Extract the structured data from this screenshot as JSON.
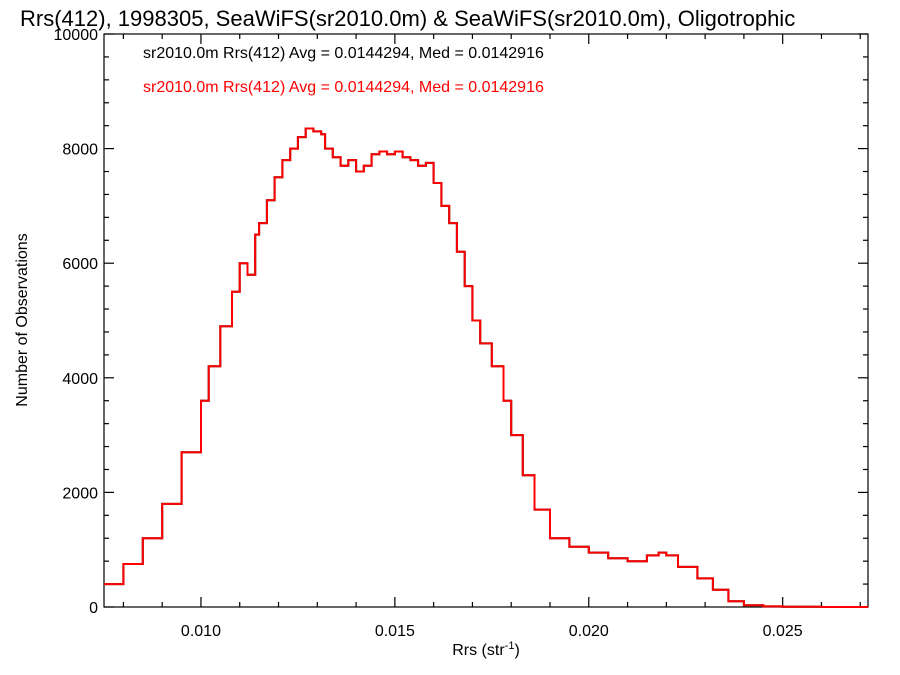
{
  "chart_data": {
    "type": "histogram",
    "title": "Rrs(412), 1998305, SeaWiFS(sr2010.0m) & SeaWiFS(sr2010.0m), Oligotrophic",
    "xlabel": "Rrs (str",
    "xlabel_sup": "-1",
    "xlabel_close": ")",
    "ylabel": "Number of Observations",
    "xlim": [
      0.0075,
      0.0272
    ],
    "ylim": [
      0,
      10000
    ],
    "xticks": [
      0.01,
      0.015,
      0.02,
      0.025
    ],
    "xtick_labels": [
      "0.010",
      "0.015",
      "0.020",
      "0.025"
    ],
    "yticks": [
      0,
      2000,
      4000,
      6000,
      8000,
      10000
    ],
    "ytick_labels": [
      "0",
      "2000",
      "4000",
      "6000",
      "8000",
      "10000"
    ],
    "grid": false,
    "legend": [
      {
        "text": "sr2010.0m Rrs(412) Avg = 0.0144294, Med = 0.0142916",
        "color": "#000000"
      },
      {
        "text": "sr2010.0m Rrs(412) Avg = 0.0144294, Med = 0.0142916",
        "color": "#ff0000"
      }
    ],
    "series": [
      {
        "color": "#000000",
        "x": [
          0.0075,
          0.008,
          0.0085,
          0.009,
          0.0095,
          0.01,
          0.0102,
          0.0105,
          0.0108,
          0.011,
          0.0112,
          0.0114,
          0.0115,
          0.0117,
          0.0119,
          0.0121,
          0.0123,
          0.0125,
          0.0127,
          0.0129,
          0.0131,
          0.0132,
          0.0134,
          0.0136,
          0.0138,
          0.014,
          0.0142,
          0.0144,
          0.0146,
          0.0148,
          0.015,
          0.0152,
          0.0154,
          0.0156,
          0.0158,
          0.016,
          0.0162,
          0.0164,
          0.0166,
          0.0168,
          0.017,
          0.0172,
          0.0175,
          0.0178,
          0.018,
          0.0183,
          0.0186,
          0.019,
          0.0195,
          0.02,
          0.0205,
          0.021,
          0.0215,
          0.0218,
          0.022,
          0.0223,
          0.0228,
          0.0232,
          0.0236,
          0.024,
          0.0245,
          0.025,
          0.026,
          0.0272
        ],
        "y": [
          400,
          750,
          1200,
          1800,
          2700,
          3600,
          4200,
          4900,
          5500,
          6000,
          5800,
          6500,
          6700,
          7100,
          7500,
          7800,
          8000,
          8200,
          8350,
          8300,
          8250,
          8000,
          7850,
          7700,
          7800,
          7600,
          7700,
          7900,
          7950,
          7900,
          7950,
          7850,
          7800,
          7700,
          7750,
          7400,
          7000,
          6700,
          6200,
          5600,
          5000,
          4600,
          4200,
          3600,
          3000,
          2300,
          1700,
          1200,
          1050,
          950,
          850,
          800,
          900,
          950,
          900,
          700,
          500,
          300,
          100,
          30,
          10,
          5,
          0,
          0
        ]
      },
      {
        "color": "#ff0000",
        "x": [
          0.0075,
          0.008,
          0.0085,
          0.009,
          0.0095,
          0.01,
          0.0102,
          0.0105,
          0.0108,
          0.011,
          0.0112,
          0.0114,
          0.0115,
          0.0117,
          0.0119,
          0.0121,
          0.0123,
          0.0125,
          0.0127,
          0.0129,
          0.0131,
          0.0132,
          0.0134,
          0.0136,
          0.0138,
          0.014,
          0.0142,
          0.0144,
          0.0146,
          0.0148,
          0.015,
          0.0152,
          0.0154,
          0.0156,
          0.0158,
          0.016,
          0.0162,
          0.0164,
          0.0166,
          0.0168,
          0.017,
          0.0172,
          0.0175,
          0.0178,
          0.018,
          0.0183,
          0.0186,
          0.019,
          0.0195,
          0.02,
          0.0205,
          0.021,
          0.0215,
          0.0218,
          0.022,
          0.0223,
          0.0228,
          0.0232,
          0.0236,
          0.024,
          0.0245,
          0.025,
          0.026,
          0.0272
        ],
        "y": [
          400,
          750,
          1200,
          1800,
          2700,
          3600,
          4200,
          4900,
          5500,
          6000,
          5800,
          6500,
          6700,
          7100,
          7500,
          7800,
          8000,
          8200,
          8350,
          8300,
          8250,
          8000,
          7850,
          7700,
          7800,
          7600,
          7700,
          7900,
          7950,
          7900,
          7950,
          7850,
          7800,
          7700,
          7750,
          7400,
          7000,
          6700,
          6200,
          5600,
          5000,
          4600,
          4200,
          3600,
          3000,
          2300,
          1700,
          1200,
          1050,
          950,
          850,
          800,
          900,
          950,
          900,
          700,
          500,
          300,
          100,
          30,
          10,
          5,
          0,
          0
        ]
      }
    ]
  }
}
